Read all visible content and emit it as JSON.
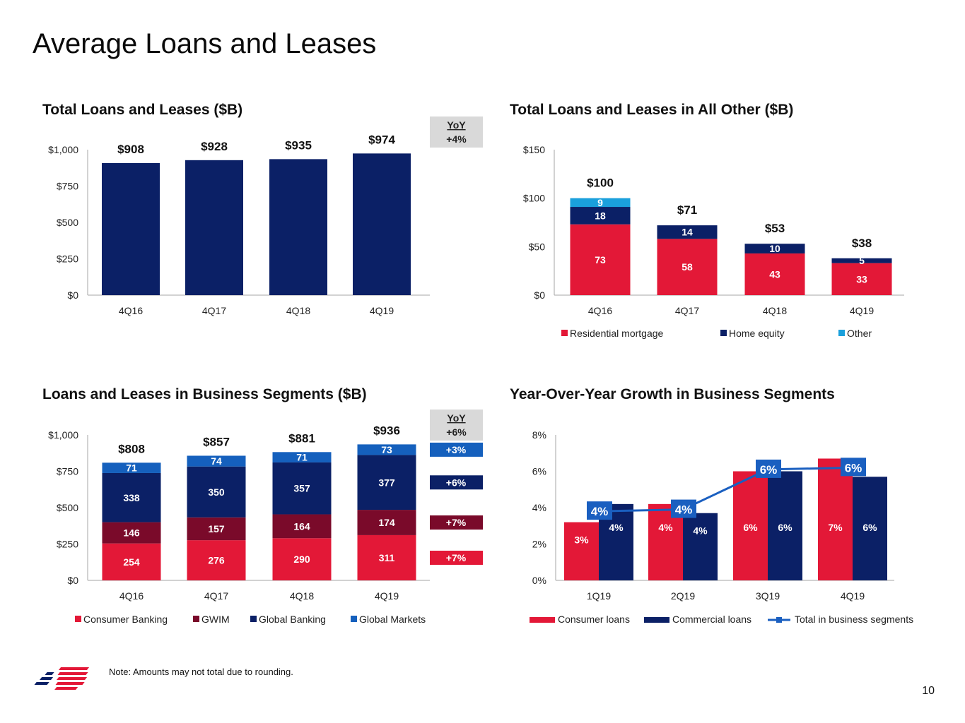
{
  "title": "Average Loans and Leases",
  "note": "Note: Amounts may not total due to rounding.",
  "page_number": "10",
  "colors": {
    "navy": "#0b2066",
    "red": "#e31837",
    "maroon": "#7a0a2a",
    "blue": "#1560bd",
    "cyan": "#1aa0dc",
    "yoy_gray": "#d9d9d9",
    "axis": "#a6a6a6"
  },
  "chart_data": [
    {
      "id": "total",
      "type": "bar",
      "title": "Total Loans and Leases ($B)",
      "categories": [
        "4Q16",
        "4Q17",
        "4Q18",
        "4Q19"
      ],
      "values": [
        908,
        928,
        935,
        974
      ],
      "value_labels": [
        "$908",
        "$928",
        "$935",
        "$974"
      ],
      "yticks": [
        "$0",
        "$250",
        "$500",
        "$750",
        "$1,000"
      ],
      "ylim": [
        0,
        1000
      ],
      "yoy": {
        "header": "YoY",
        "value": "+4%"
      }
    },
    {
      "id": "all_other",
      "type": "bar",
      "stacked": true,
      "title": "Total Loans and Leases in All Other ($B)",
      "categories": [
        "4Q16",
        "4Q17",
        "4Q18",
        "4Q19"
      ],
      "series": [
        {
          "name": "Residential mortgage",
          "values": [
            73,
            58,
            43,
            33
          ],
          "labels": [
            "73",
            "58",
            "43",
            "33"
          ],
          "color": "#e31837"
        },
        {
          "name": "Home equity",
          "values": [
            18,
            14,
            10,
            5
          ],
          "labels": [
            "18",
            "14",
            "10",
            "5"
          ],
          "color": "#0b2066"
        },
        {
          "name": "Other",
          "values": [
            9,
            0,
            0,
            0
          ],
          "labels": [
            "9",
            "",
            "",
            ""
          ],
          "color": "#1aa0dc"
        }
      ],
      "totals": [
        "$100",
        "$71",
        "$53",
        "$38"
      ],
      "yticks": [
        "$0",
        "$50",
        "$100",
        "$150"
      ],
      "ylim": [
        0,
        150
      ],
      "legend": "bottom"
    },
    {
      "id": "segments",
      "type": "bar",
      "stacked": true,
      "title": "Loans and Leases in Business Segments ($B)",
      "categories": [
        "4Q16",
        "4Q17",
        "4Q18",
        "4Q19"
      ],
      "series": [
        {
          "name": "Consumer Banking",
          "values": [
            254,
            276,
            290,
            311
          ],
          "labels": [
            "254",
            "276",
            "290",
            "311"
          ],
          "color": "#e31837",
          "yoy": "+7%"
        },
        {
          "name": "GWIM",
          "values": [
            146,
            157,
            164,
            174
          ],
          "labels": [
            "146",
            "157",
            "164",
            "174"
          ],
          "color": "#7a0a2a",
          "yoy": "+7%"
        },
        {
          "name": "Global Banking",
          "values": [
            338,
            350,
            357,
            377
          ],
          "labels": [
            "338",
            "350",
            "357",
            "377"
          ],
          "color": "#0b2066",
          "yoy": "+6%"
        },
        {
          "name": "Global Markets",
          "values": [
            71,
            74,
            71,
            73
          ],
          "labels": [
            "71",
            "74",
            "71",
            "73"
          ],
          "color": "#1560bd",
          "yoy": "+3%"
        }
      ],
      "totals": [
        "$808",
        "$857",
        "$881",
        "$936"
      ],
      "yticks": [
        "$0",
        "$250",
        "$500",
        "$750",
        "$1,000"
      ],
      "ylim": [
        0,
        1000
      ],
      "yoy": {
        "header": "YoY",
        "value": "+6%"
      },
      "legend": "bottom"
    },
    {
      "id": "growth",
      "type": "bar",
      "title": "Year-Over-Year Growth in Business Segments",
      "categories": [
        "1Q19",
        "2Q19",
        "3Q19",
        "4Q19"
      ],
      "series": [
        {
          "name": "Consumer loans",
          "values": [
            3.2,
            4.2,
            6.0,
            6.7
          ],
          "labels": [
            "3%",
            "4%",
            "6%",
            "7%"
          ],
          "color": "#e31837"
        },
        {
          "name": "Commercial loans",
          "values": [
            4.2,
            3.7,
            6.0,
            5.7
          ],
          "labels": [
            "4%",
            "4%",
            "6%",
            "6%"
          ],
          "color": "#0b2066"
        }
      ],
      "line": {
        "name": "Total in business segments",
        "values": [
          3.8,
          3.9,
          6.1,
          6.2
        ],
        "labels": [
          "4%",
          "4%",
          "6%",
          "6%"
        ],
        "color": "#1a5fc0"
      },
      "yticks": [
        "0%",
        "2%",
        "4%",
        "6%",
        "8%"
      ],
      "ylim": [
        0,
        8
      ],
      "legend": "bottom"
    }
  ]
}
